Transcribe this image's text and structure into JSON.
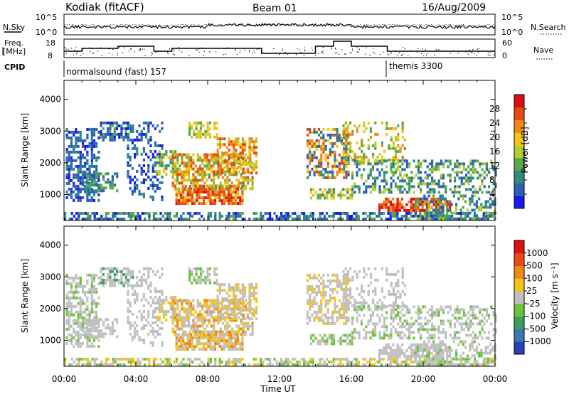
{
  "header": {
    "title_left": "Kodiak (fitACF)",
    "title_center": "Beam 01",
    "title_right": "16/Aug/2009"
  },
  "top_panels": {
    "nsky_label": "N.Sky",
    "nsearch_label": "N.Search",
    "nsky_ticks": [
      "10^5",
      "10^0"
    ],
    "nsearch_ticks": [
      "10^5",
      "10^0"
    ],
    "freq_label_1": "Freq.",
    "freq_label_2": "[MHz]",
    "freq_ticks": [
      "18",
      "8"
    ],
    "nave_label": "Nave",
    "nave_ticks": [
      "60",
      "0"
    ],
    "cpid_label": "CPID",
    "cpid_segments": [
      {
        "name": "normalsound (fast) 157",
        "start_hour": 0
      },
      {
        "name": "themis 3300",
        "start_hour": 18
      }
    ]
  },
  "chart_data": [
    {
      "type": "heatmap",
      "panel": "power",
      "ylabel": "Slant Range [km]",
      "xlabel": "Time UT",
      "xlim": [
        0,
        24
      ],
      "ylim": [
        180,
        4600
      ],
      "x_ticks": [
        "00:00",
        "04:00",
        "08:00",
        "12:00",
        "16:00",
        "20:00",
        "00:00"
      ],
      "y_ticks": [
        1000,
        2000,
        3000,
        4000
      ],
      "colorbar": {
        "label": "Power [dB]",
        "ticks": [
          4,
          8,
          12,
          16,
          20,
          24,
          28
        ],
        "colors": [
          "#1a1aee",
          "#2c5fb8",
          "#2f8b7c",
          "#5aa84a",
          "#b6cc30",
          "#f5c414",
          "#f08a12",
          "#e84a10",
          "#d81010"
        ]
      }
    },
    {
      "type": "heatmap",
      "panel": "velocity",
      "ylabel": "Slant Range [km]",
      "xlabel": "Time UT",
      "xlim": [
        0,
        24
      ],
      "ylim": [
        180,
        4600
      ],
      "x_ticks": [
        "00:00",
        "04:00",
        "08:00",
        "12:00",
        "16:00",
        "20:00",
        "00:00"
      ],
      "y_ticks": [
        1000,
        2000,
        3000,
        4000
      ],
      "colorbar": {
        "label": "Velocity [m s⁻¹]",
        "ticks": [
          "1000",
          "500",
          "100",
          "25",
          "-25",
          "-100",
          "-500",
          "-1000"
        ],
        "colors": [
          "#2a3fb8",
          "#3a78b0",
          "#3aa060",
          "#6cc43a",
          "#c0c0c0",
          "#f5c414",
          "#f08a12",
          "#ec4a10",
          "#e01010"
        ]
      }
    }
  ]
}
